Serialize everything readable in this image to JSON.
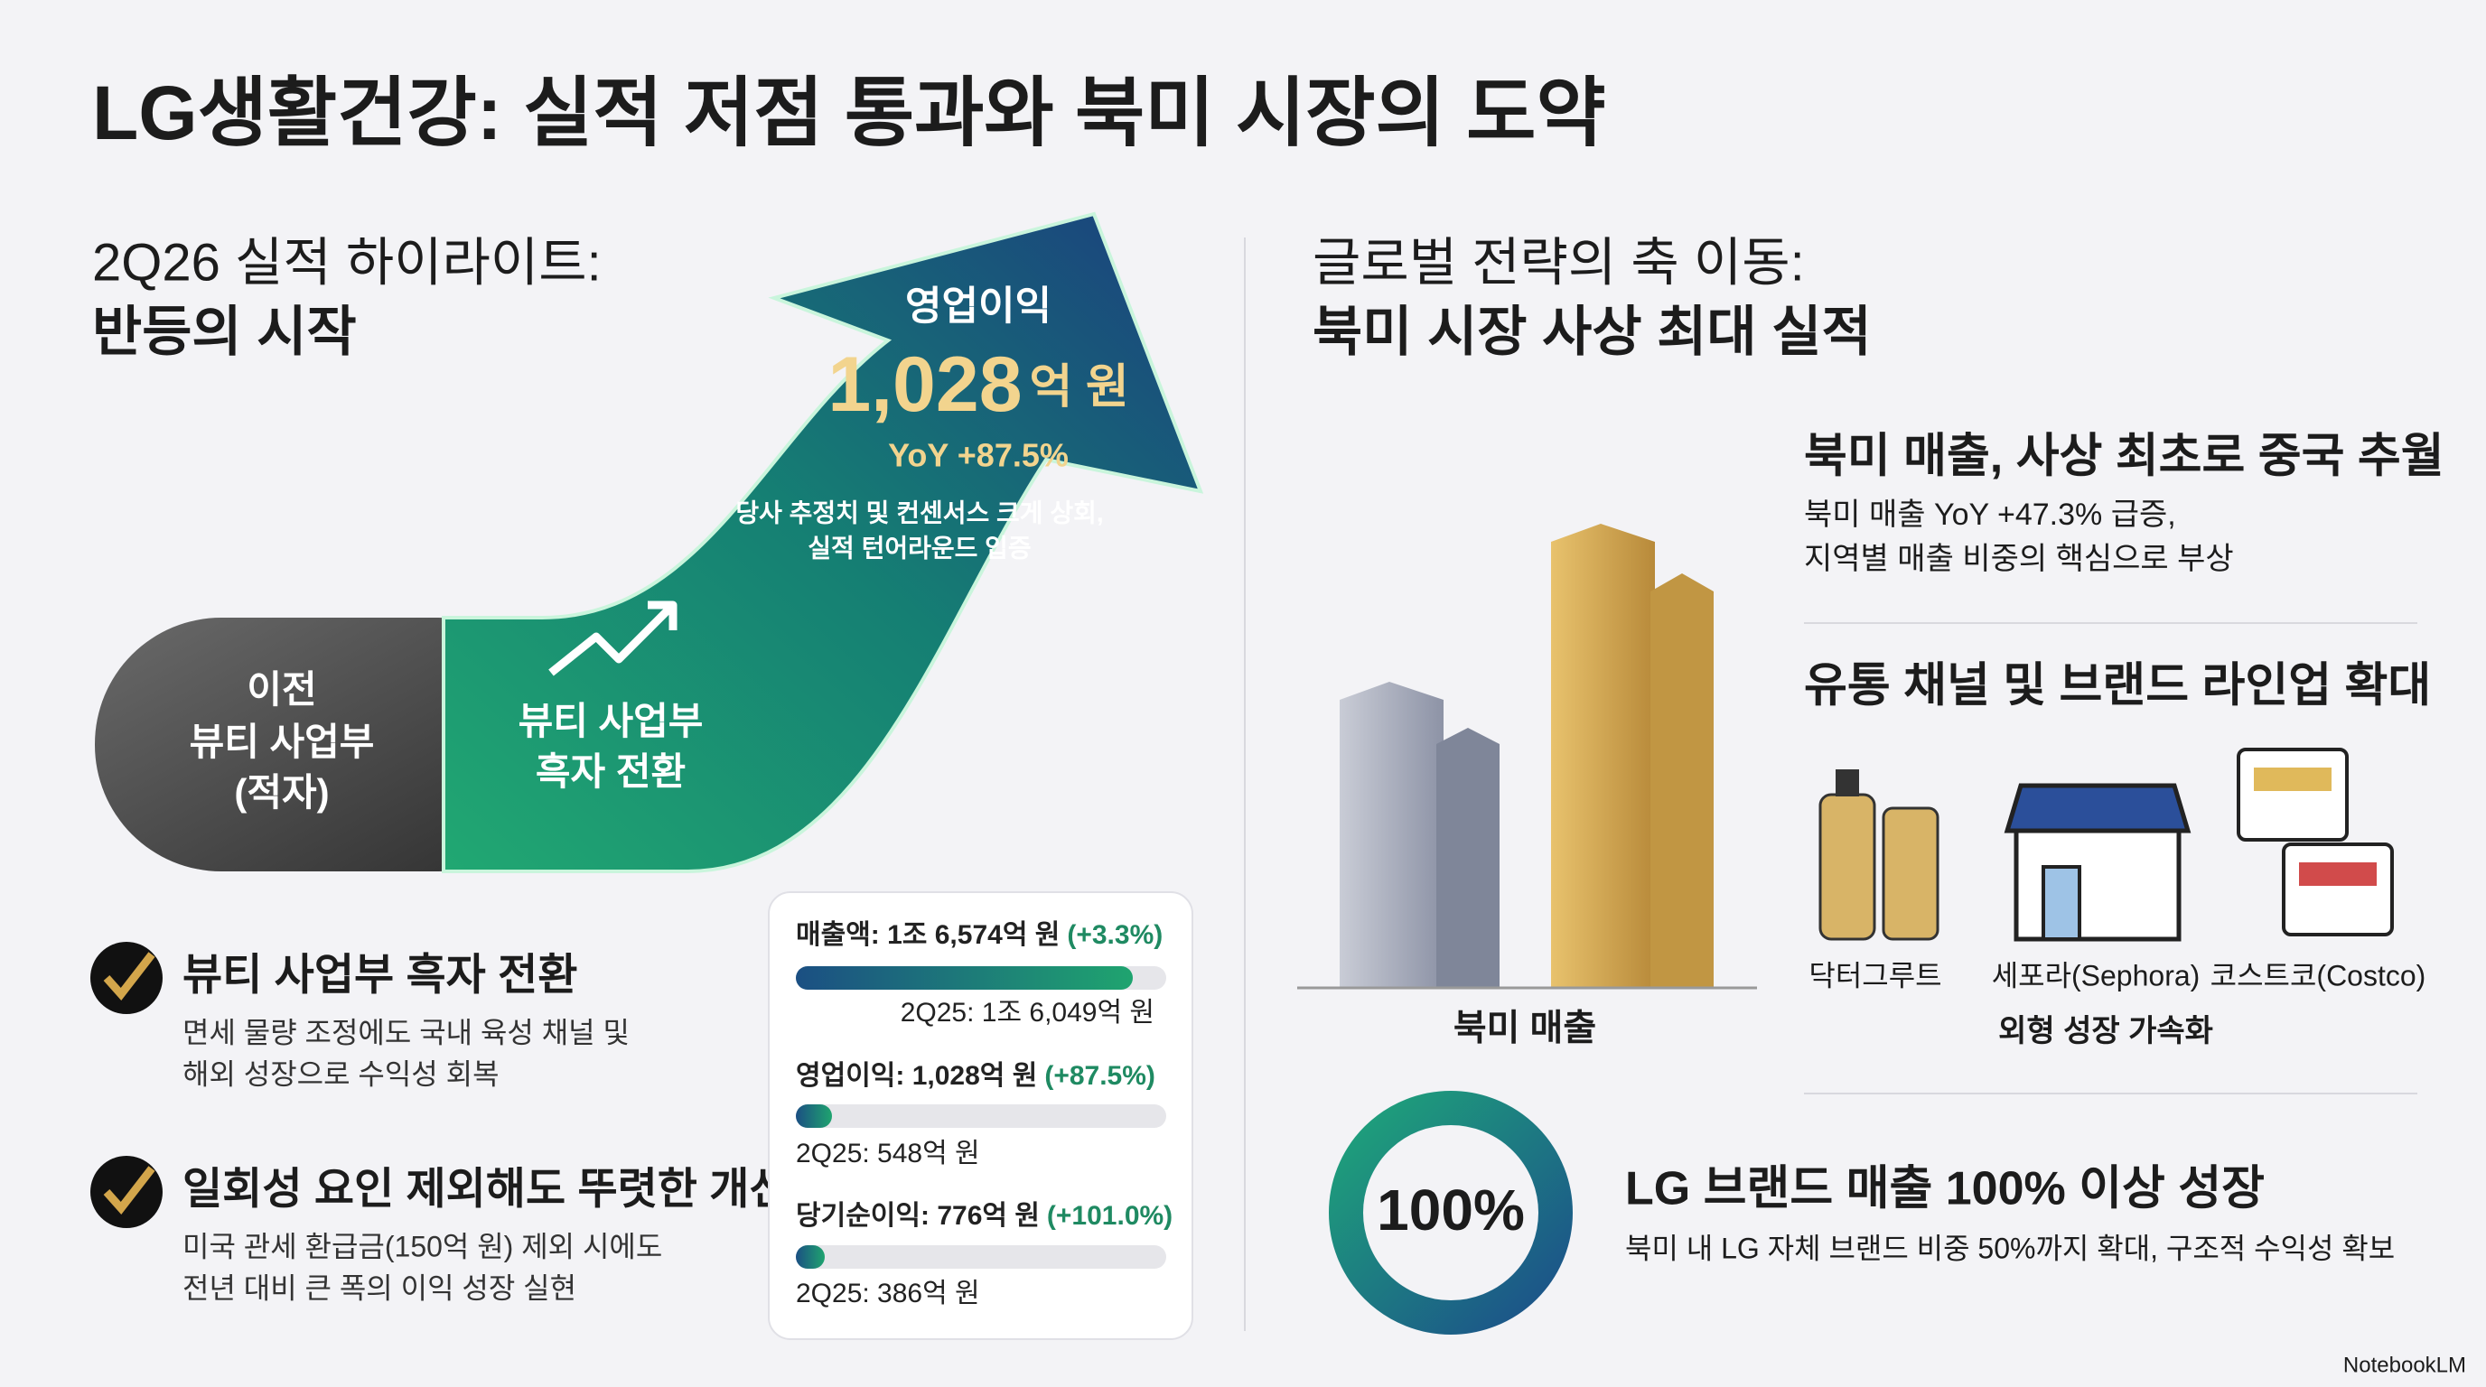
{
  "header": {
    "title": "LG생활건강: 실적 저점 통과와 북미 시장의 도약"
  },
  "left": {
    "subtitle": "2Q26 실적 하이라이트:",
    "heading": "반등의 시작",
    "arrow": {
      "label": "영업이익",
      "value": "1,028",
      "unit": "억 원",
      "yoy": "YoY +87.5%",
      "note": [
        "당사 추정치 및 컨센서스 크게 상회,",
        "실적 턴어라운드 입증"
      ]
    },
    "before": [
      "이전",
      "뷰티 사업부",
      "(적자)"
    ],
    "after": [
      "뷰티 사업부",
      "흑자 전환"
    ],
    "points": [
      {
        "title": "뷰티 사업부 흑자 전환",
        "body": [
          "면세 물량 조정에도 국내 육성 채널 및",
          "해외 성장으로 수익성 회복"
        ]
      },
      {
        "title": "일회성 요인 제외해도 뚜렷한 개선",
        "body": [
          "미국 관세 환급금(150억 원) 제외 시에도",
          "전년 대비 큰 폭의 이익 성장 실현"
        ]
      }
    ],
    "card": [
      {
        "label": "매출액: 1조 6,574억 원",
        "change": "(+3.3%)",
        "prior": "2Q25: 1조 6,049억 원"
      },
      {
        "label": "영업이익: 1,028억 원",
        "change": "(+87.5%)",
        "prior": "2Q25: 548억 원"
      },
      {
        "label": "당기순이익: 776억 원",
        "change": "(+101.0%)",
        "prior": "2Q25: 386억 원"
      }
    ]
  },
  "right": {
    "subtitle": "글로벌 전략의 축 이동:",
    "heading": "북미 시장 사상 최대 실적",
    "chart_label": "북미 매출",
    "sections": [
      {
        "title": "북미 매출, 사상 최초로 중국 추월",
        "body": [
          "북미 매출 YoY +47.3% 급증,",
          "지역별 매출 비중의 핵심으로 부상"
        ]
      },
      {
        "title": "유통 채널 및 브랜드 라인업 확대",
        "channels": [
          "닥터그루트",
          "세포라(Sephora)",
          "코스트코(Costco)"
        ],
        "caption": "외형 성장 가속화"
      },
      {
        "badge": "100%",
        "title": "LG 브랜드 매출 100% 이상 성장",
        "body": [
          "북미 내 LG 자체 브랜드 비중 50%까지 확대, 구조적 수익성 확보"
        ]
      }
    ]
  },
  "footer": {
    "brand": "NotebookLM"
  }
}
